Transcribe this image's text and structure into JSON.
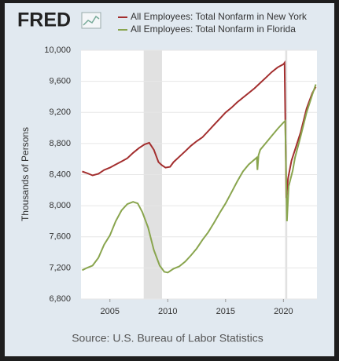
{
  "chart_data": {
    "type": "line",
    "logo": "FRED",
    "source": "Source: U.S. Bureau of Labor Statistics",
    "y_label": "Thousands of Persons",
    "xlim": [
      2002.5,
      2022.9
    ],
    "xticks": [
      2005,
      2010,
      2015,
      2020
    ],
    "ylim": [
      6800,
      10000
    ],
    "yticks": [
      {
        "value": 6800,
        "label": "6,800"
      },
      {
        "value": 7200,
        "label": "7,200"
      },
      {
        "value": 7600,
        "label": "7,600"
      },
      {
        "value": 8000,
        "label": "8,000"
      },
      {
        "value": 8400,
        "label": "8,400"
      },
      {
        "value": 8800,
        "label": "8,800"
      },
      {
        "value": 9200,
        "label": "9,200"
      },
      {
        "value": 9600,
        "label": "9,600"
      },
      {
        "value": 10000,
        "label": "10,000"
      }
    ],
    "grid": true,
    "recessions": [
      [
        2007.92,
        2009.5
      ],
      [
        2020.15,
        2020.33
      ]
    ],
    "series": [
      {
        "name": "All Employees: Total Nonfarm in New York",
        "color": "#a32e2e",
        "x": [
          2002.6,
          2003.0,
          2003.5,
          2004.0,
          2004.5,
          2005.0,
          2005.5,
          2006.0,
          2006.5,
          2007.0,
          2007.5,
          2008.0,
          2008.4,
          2008.8,
          2009.2,
          2009.5,
          2009.8,
          2010.2,
          2010.5,
          2011.0,
          2011.5,
          2012.0,
          2012.5,
          2013.0,
          2013.5,
          2014.0,
          2014.5,
          2015.0,
          2015.5,
          2016.0,
          2016.5,
          2017.0,
          2017.5,
          2018.0,
          2018.5,
          2019.0,
          2019.5,
          2020.0,
          2020.1,
          2020.25,
          2020.4,
          2020.7,
          2021.0,
          2021.5,
          2022.0,
          2022.5,
          2022.8
        ],
        "values": [
          8440,
          8420,
          8390,
          8410,
          8460,
          8490,
          8530,
          8570,
          8610,
          8680,
          8740,
          8790,
          8810,
          8720,
          8560,
          8520,
          8490,
          8500,
          8560,
          8630,
          8700,
          8770,
          8830,
          8880,
          8960,
          9040,
          9120,
          9200,
          9260,
          9330,
          9390,
          9450,
          9510,
          9580,
          9650,
          9720,
          9780,
          9820,
          9840,
          8100,
          8350,
          8580,
          8720,
          8950,
          9250,
          9450,
          9530
        ]
      },
      {
        "name": "All Employees: Total Nonfarm in Florida",
        "color": "#89a54e",
        "x": [
          2002.6,
          2003.0,
          2003.5,
          2004.0,
          2004.5,
          2005.0,
          2005.5,
          2006.0,
          2006.5,
          2007.0,
          2007.4,
          2007.8,
          2008.3,
          2008.8,
          2009.3,
          2009.7,
          2010.0,
          2010.5,
          2011.0,
          2011.5,
          2012.0,
          2012.5,
          2013.0,
          2013.5,
          2014.0,
          2014.5,
          2015.0,
          2015.5,
          2016.0,
          2016.5,
          2017.0,
          2017.7,
          2017.75,
          2017.85,
          2018.0,
          2018.5,
          2019.0,
          2019.5,
          2020.0,
          2020.15,
          2020.3,
          2020.45,
          2020.8,
          2021.0,
          2021.5,
          2022.0,
          2022.5,
          2022.8
        ],
        "values": [
          7170,
          7200,
          7230,
          7330,
          7500,
          7620,
          7800,
          7940,
          8020,
          8050,
          8030,
          7920,
          7720,
          7430,
          7230,
          7150,
          7140,
          7190,
          7220,
          7280,
          7360,
          7450,
          7560,
          7660,
          7780,
          7910,
          8030,
          8170,
          8310,
          8440,
          8530,
          8620,
          8460,
          8650,
          8720,
          8810,
          8900,
          8990,
          9070,
          9090,
          7800,
          8250,
          8450,
          8620,
          8900,
          9200,
          9430,
          9560
        ]
      }
    ]
  }
}
